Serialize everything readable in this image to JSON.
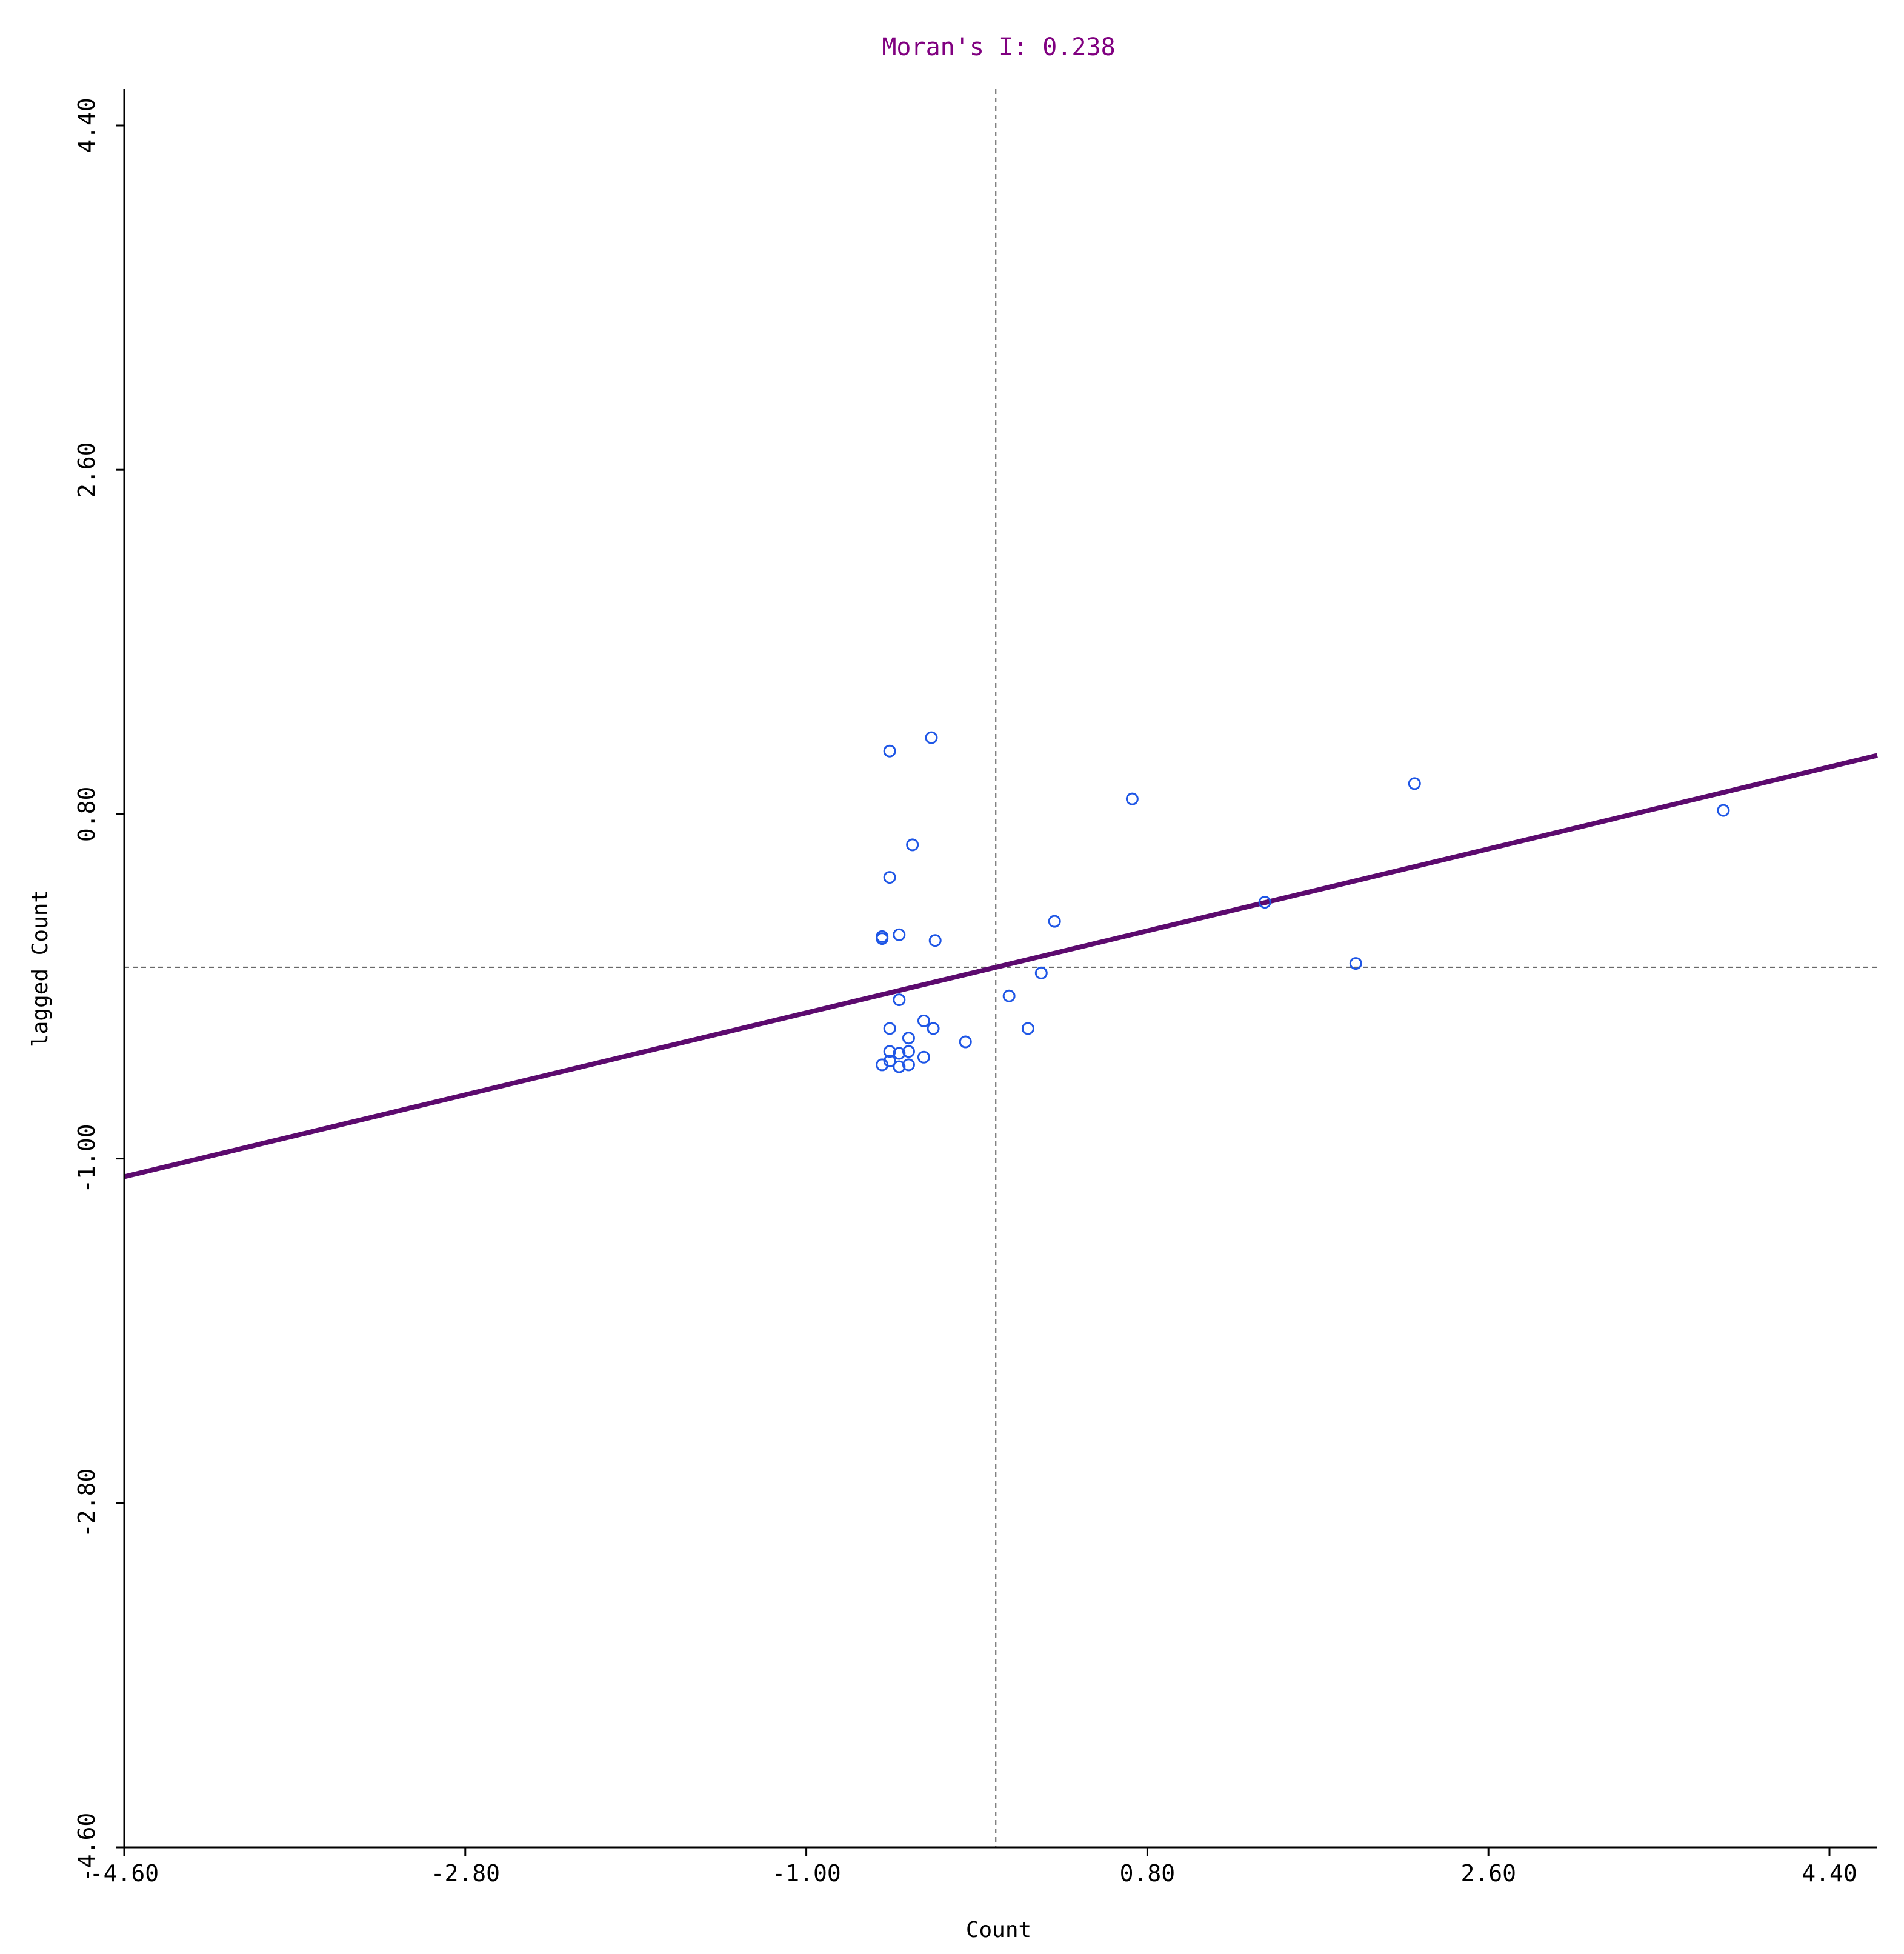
{
  "chart_data": {
    "type": "scatter",
    "title": "Moran's I: 0.238",
    "xlabel": "Count",
    "ylabel": "lagged Count",
    "xlim": [
      -4.6,
      4.6
    ],
    "ylim": [
      -4.6,
      4.6
    ],
    "xticks": [
      "-4.60",
      "-2.80",
      "-1.00",
      "0.80",
      "2.60",
      "4.40"
    ],
    "yticks": [
      "-4.60",
      "-2.80",
      "-1.00",
      "0.80",
      "2.60",
      "4.40"
    ],
    "x_mean": 0,
    "y_mean": 0,
    "grid": false,
    "colors": {
      "title": "#800080",
      "points": "#1e56e6",
      "regression": "#5c0a6e",
      "mean_lines": "#555555"
    },
    "regression": {
      "slope": 0.238,
      "intercept": 0.0
    },
    "points": [
      [
        -0.56,
        1.13
      ],
      [
        -0.34,
        1.2
      ],
      [
        -0.44,
        0.64
      ],
      [
        -0.56,
        0.47
      ],
      [
        -0.6,
        0.15
      ],
      [
        -0.6,
        0.16
      ],
      [
        -0.51,
        0.17
      ],
      [
        -0.32,
        0.14
      ],
      [
        0.31,
        0.24
      ],
      [
        0.24,
        -0.03
      ],
      [
        0.07,
        -0.15
      ],
      [
        0.17,
        -0.32
      ],
      [
        -0.16,
        -0.39
      ],
      [
        -0.33,
        -0.32
      ],
      [
        -0.38,
        -0.28
      ],
      [
        -0.51,
        -0.17
      ],
      [
        -0.56,
        -0.32
      ],
      [
        -0.46,
        -0.37
      ],
      [
        -0.56,
        -0.44
      ],
      [
        -0.46,
        -0.44
      ],
      [
        -0.51,
        -0.45
      ],
      [
        -0.6,
        -0.51
      ],
      [
        -0.56,
        -0.49
      ],
      [
        -0.51,
        -0.52
      ],
      [
        -0.46,
        -0.51
      ],
      [
        -0.38,
        -0.47
      ],
      [
        0.72,
        0.88
      ],
      [
        1.42,
        0.34
      ],
      [
        1.9,
        0.02
      ],
      [
        2.21,
        0.96
      ],
      [
        3.84,
        0.82
      ]
    ]
  }
}
